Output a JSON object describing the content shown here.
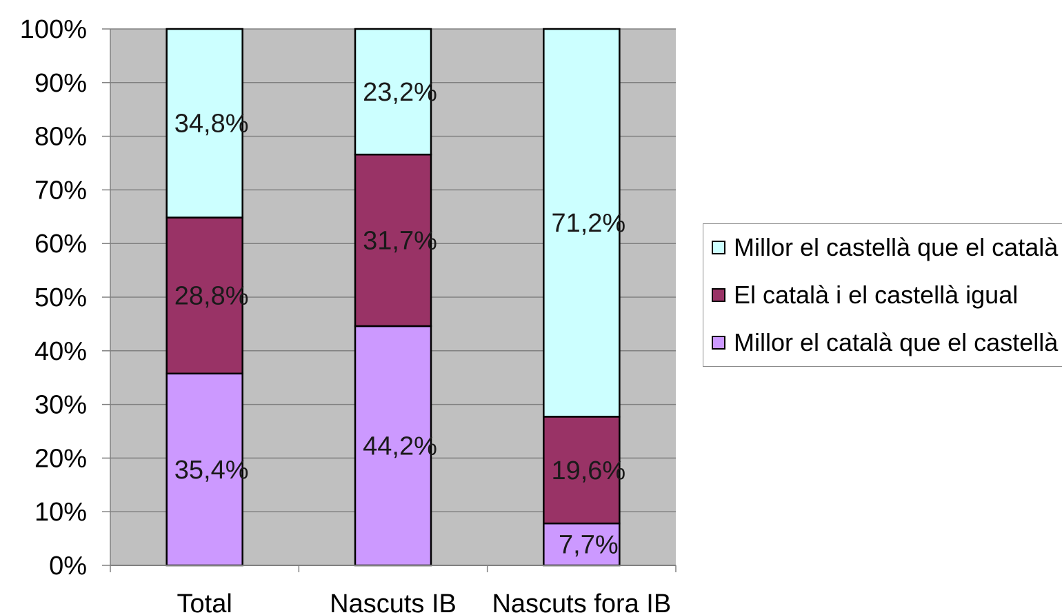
{
  "chart_data": {
    "type": "bar",
    "stacked": true,
    "percent_stacked": true,
    "categories": [
      "Total",
      "Nascuts IB",
      "Nascuts fora IB"
    ],
    "series": [
      {
        "name": "Millor el català que el castellà",
        "values": [
          35.4,
          44.2,
          7.7
        ],
        "labels": [
          "35,4%",
          "44,2%",
          "7,7%"
        ],
        "color": "#cc99ff"
      },
      {
        "name": "El català i el castellà igual",
        "values": [
          28.8,
          31.7,
          19.6
        ],
        "labels": [
          "28,8%",
          "31,7%",
          "19,6%"
        ],
        "color": "#993366"
      },
      {
        "name": "Millor el castellà que el català",
        "values": [
          34.8,
          23.2,
          71.2
        ],
        "labels": [
          "34,8%",
          "23,2%",
          "71,2%"
        ],
        "color": "#ccffff"
      }
    ],
    "legend_order": [
      2,
      1,
      0
    ],
    "yticks": [
      "0%",
      "10%",
      "20%",
      "30%",
      "40%",
      "50%",
      "60%",
      "70%",
      "80%",
      "90%",
      "100%"
    ],
    "ylim": [
      0,
      100
    ],
    "grid": true,
    "plot_background": "#c0c0c0",
    "legend_position": "right"
  }
}
